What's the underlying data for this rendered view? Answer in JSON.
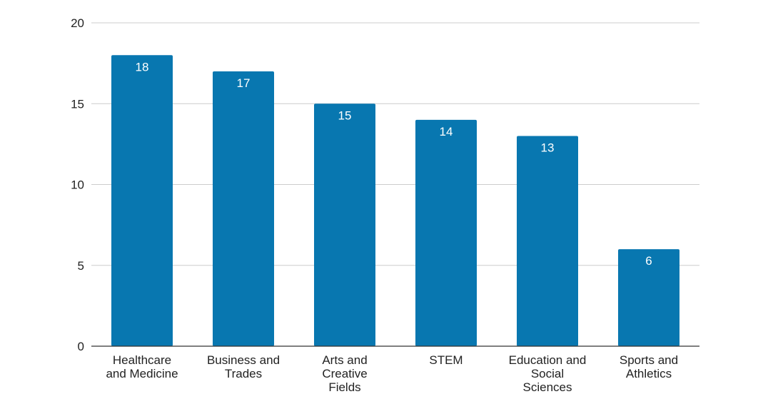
{
  "chart_data": {
    "type": "bar",
    "categories": [
      [
        "Healthcare",
        "and Medicine"
      ],
      [
        "Business and",
        "Trades"
      ],
      [
        "Arts and",
        "Creative",
        "Fields"
      ],
      [
        "STEM"
      ],
      [
        "Education and",
        "Social",
        "Sciences"
      ],
      [
        "Sports and",
        "Athletics"
      ]
    ],
    "values": [
      18,
      17,
      15,
      14,
      13,
      6
    ],
    "ylim": [
      0,
      20
    ],
    "yticks": [
      0,
      5,
      10,
      15,
      20
    ],
    "grid": true,
    "legend": "none",
    "bar_color": "#0877B0",
    "data_label_color": "#ffffff"
  }
}
